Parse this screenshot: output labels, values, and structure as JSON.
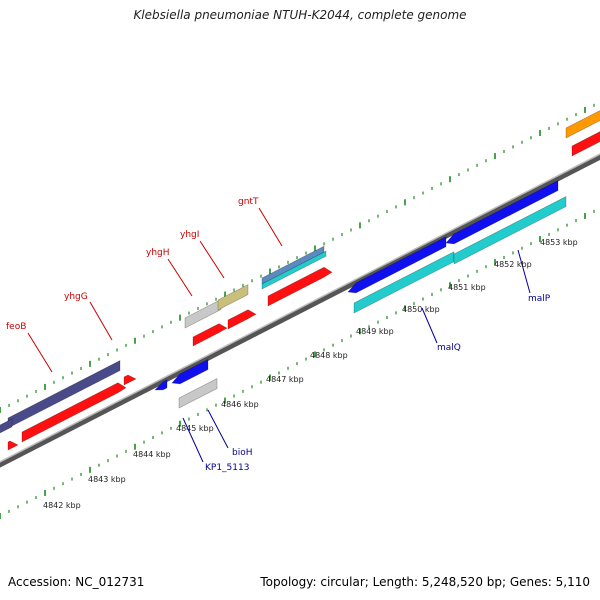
{
  "title": "Klebsiella pneumoniae NTUH-K2044, complete genome",
  "footer": {
    "accession": "Accession: NC_012731",
    "summary": "Topology: circular; Length: 5,248,520 bp; Genes: 5,110"
  },
  "genes_top": [
    {
      "name": "feoB"
    },
    {
      "name": "yhgG"
    },
    {
      "name": "yhgH"
    },
    {
      "name": "yhgI"
    },
    {
      "name": "gntT"
    }
  ],
  "genes_bottom": [
    {
      "name": "KP1_5113"
    },
    {
      "name": "bioH"
    },
    {
      "name": "malQ"
    },
    {
      "name": "malP"
    }
  ],
  "kbp_labels": [
    "4842 kbp",
    "4843 kbp",
    "4844 kbp",
    "4845 kbp",
    "4846 kbp",
    "4847 kbp",
    "4848 kbp",
    "4849 kbp",
    "4850 kbp",
    "4851 kbp",
    "4852 kbp",
    "4853 kbp"
  ],
  "colors": {
    "forward": "#ff1010",
    "reverse": "#1010ee",
    "cyan": "#22cccc",
    "navy": "#4a4a8a",
    "grey": "#c8c8c8",
    "olive": "#c8c07a",
    "steel": "#5a8ac0",
    "orange": "#ff9900",
    "tick": "#1a8a1a",
    "backbone": "#888888",
    "label_top": "#cc0000",
    "label_bottom": "#000099"
  }
}
